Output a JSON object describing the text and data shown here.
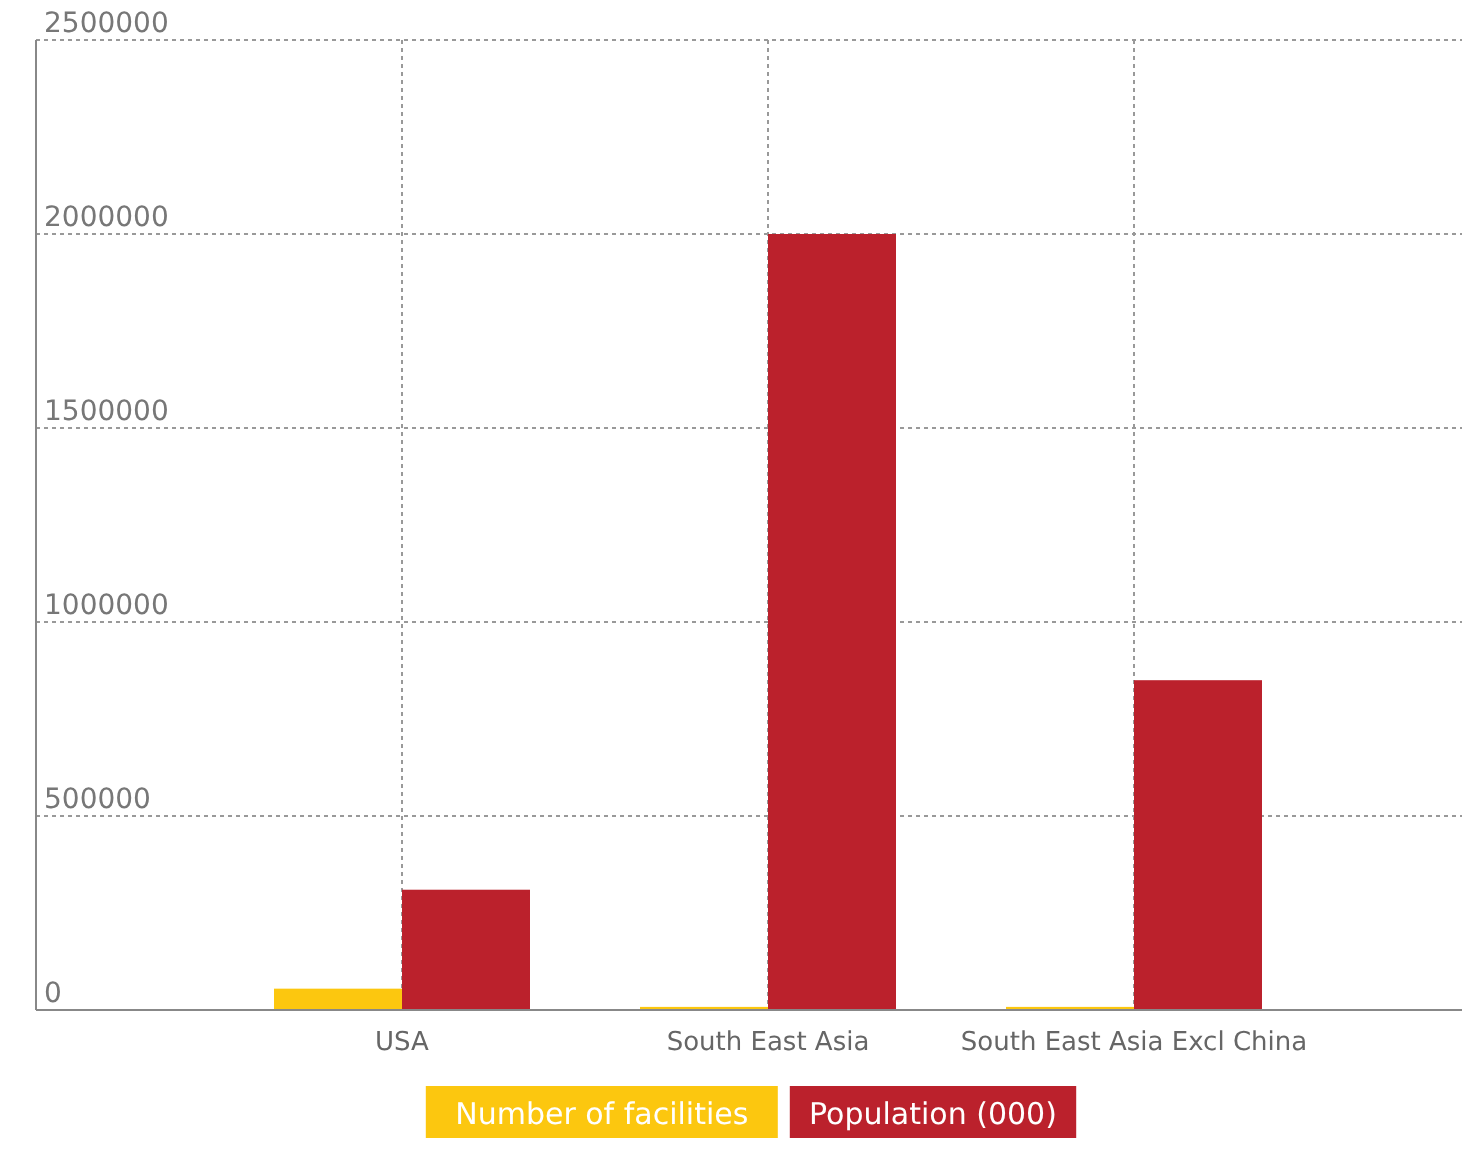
{
  "chart_data": {
    "type": "bar",
    "categories": [
      "USA",
      "South East Asia",
      "South East Asia Excl China"
    ],
    "series": [
      {
        "name": "Number of facilities",
        "color": "#fcc70f",
        "values": [
          55000,
          8000,
          8000
        ]
      },
      {
        "name": "Population (000)",
        "color": "#bb212c",
        "values": [
          310000,
          2000000,
          850000
        ]
      }
    ],
    "ylim": [
      0,
      2500000
    ],
    "yticks": [
      0,
      500000,
      1000000,
      1500000,
      2000000,
      2500000
    ],
    "grid": true,
    "legend": "bottom"
  }
}
